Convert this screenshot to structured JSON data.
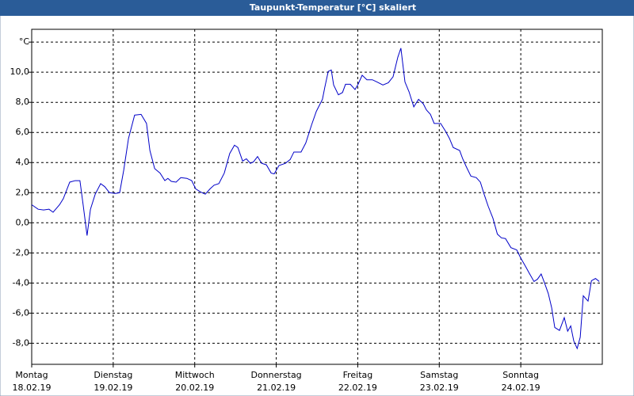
{
  "chart_data": {
    "type": "line",
    "title": "Taupunkt-Temperatur [°C] skaliert",
    "xlim": [
      0,
      168
    ],
    "ylim": [
      -9.4,
      12.85
    ],
    "xticks": [
      {
        "value": 0,
        "label": "Montag"
      },
      {
        "value": 24,
        "label": "Dienstag"
      },
      {
        "value": 48,
        "label": "Mittwoch"
      },
      {
        "value": 72,
        "label": "Donnerstag"
      },
      {
        "value": 96,
        "label": "Freitag"
      },
      {
        "value": 120,
        "label": "Samstag"
      },
      {
        "value": 144,
        "label": "Sonntag"
      }
    ],
    "xtick_dates": [
      "18.02.19",
      "19.02.19",
      "20.02.19",
      "21.02.19",
      "22.02.19",
      "23.02.19",
      "24.02.19"
    ],
    "yticks": [
      {
        "value": -8,
        "label": "-8,0"
      },
      {
        "value": -6,
        "label": "-6,0"
      },
      {
        "value": -4,
        "label": "-4,0"
      },
      {
        "value": -2,
        "label": "-2,0"
      },
      {
        "value": 0,
        "label": "0,0"
      },
      {
        "value": 2,
        "label": "2,0"
      },
      {
        "value": 4,
        "label": "4,0"
      },
      {
        "value": 6,
        "label": "6,0"
      },
      {
        "value": 8,
        "label": "8,0"
      },
      {
        "value": 10,
        "label": "10,0"
      },
      {
        "value": 12,
        "label": "°C"
      }
    ],
    "grid": true,
    "x": [
      0,
      1.9,
      3.5,
      5.1,
      6.3,
      8.2,
      9.3,
      11.2,
      12.8,
      14.2,
      15.2,
      16.3,
      17.3,
      18.7,
      20.3,
      21.5,
      22.9,
      24.7,
      25.9,
      27.1,
      28.5,
      30.3,
      32.2,
      33.8,
      34.8,
      36.2,
      37.8,
      39.2,
      40.1,
      41.1,
      42.5,
      43.9,
      45.7,
      47.1,
      48.3,
      49.7,
      51.1,
      52.5,
      53.7,
      55.1,
      56.7,
      58.3,
      59.7,
      60.7,
      62.1,
      63.2,
      64.4,
      65.3,
      66.5,
      67.7,
      69.1,
      70.5,
      71.4,
      72.8,
      74.7,
      76.1,
      77.2,
      79.3,
      80.7,
      82.4,
      83.8,
      85.6,
      86.3,
      87.3,
      88.2,
      88.9,
      90.3,
      91.5,
      92.4,
      93.8,
      95.2,
      96.1,
      97.3,
      98.7,
      100.3,
      101.7,
      103.4,
      105.0,
      106.4,
      107.8,
      108.7,
      109.9,
      111.1,
      112.5,
      113.9,
      115.3,
      116.2,
      117.4,
      118.5,
      120.4,
      121.8,
      123.0,
      124.1,
      126.0,
      126.9,
      127.9,
      129.3,
      130.9,
      132.1,
      133.2,
      134.4,
      135.8,
      137.1,
      138.3,
      139.5,
      141.1,
      142.8,
      144.0,
      145.4,
      146.5,
      147.9,
      148.9,
      150.0,
      151.0,
      152.1,
      153.1,
      154.0,
      155.4,
      156.8,
      157.8,
      158.7,
      159.6,
      160.6,
      161.5,
      162.4,
      163.8,
      164.8,
      166.0,
      167.1
    ],
    "series": [
      {
        "name": "Taupunkt",
        "color": "#0000c8",
        "values": [
          1.2,
          0.9,
          0.85,
          0.9,
          0.7,
          1.2,
          1.6,
          2.7,
          2.8,
          2.8,
          1.1,
          -0.85,
          0.9,
          1.9,
          2.6,
          2.4,
          2.0,
          1.95,
          2.0,
          3.5,
          5.6,
          7.15,
          7.2,
          6.6,
          4.8,
          3.6,
          3.3,
          2.8,
          2.95,
          2.75,
          2.7,
          3.0,
          2.95,
          2.8,
          2.25,
          2.05,
          1.9,
          2.25,
          2.5,
          2.6,
          3.3,
          4.6,
          5.15,
          5.0,
          4.1,
          4.25,
          3.95,
          4.05,
          4.4,
          3.95,
          3.85,
          3.3,
          3.25,
          3.8,
          3.95,
          4.2,
          4.7,
          4.7,
          5.3,
          6.5,
          7.4,
          8.2,
          9.0,
          10.05,
          10.15,
          9.15,
          8.5,
          8.65,
          9.2,
          9.2,
          8.85,
          9.2,
          9.8,
          9.5,
          9.5,
          9.35,
          9.15,
          9.3,
          9.7,
          11.0,
          11.6,
          9.35,
          8.7,
          7.7,
          8.2,
          7.9,
          7.5,
          7.2,
          6.6,
          6.6,
          6.1,
          5.6,
          5.0,
          4.8,
          4.25,
          3.75,
          3.1,
          3.0,
          2.7,
          1.9,
          1.1,
          0.3,
          -0.75,
          -1.0,
          -1.05,
          -1.65,
          -1.8,
          -2.35,
          -2.9,
          -3.35,
          -3.9,
          -3.75,
          -3.4,
          -4.0,
          -4.7,
          -5.65,
          -6.95,
          -7.15,
          -6.3,
          -7.2,
          -6.85,
          -7.85,
          -8.35,
          -7.6,
          -4.85,
          -5.2,
          -3.85,
          -3.7,
          -3.9
        ]
      }
    ]
  }
}
